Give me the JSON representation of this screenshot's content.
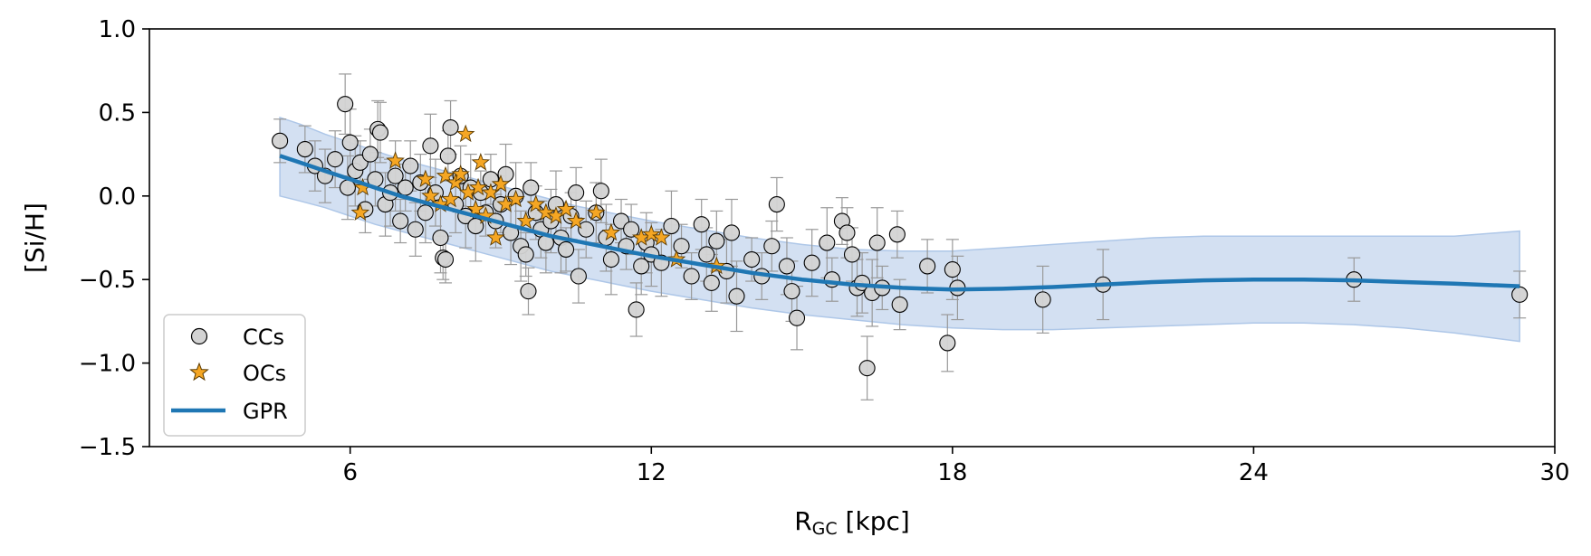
{
  "chart_data": {
    "type": "scatter",
    "title": "",
    "xlabel_main": "R",
    "xlabel_sub": "GC",
    "xlabel_unit": " [kpc]",
    "ylabel": "[Si/H]",
    "xlim": [
      2,
      30
    ],
    "ylim": [
      -1.5,
      1.0
    ],
    "x_ticks": [
      6,
      12,
      18,
      24,
      30
    ],
    "x_tick_labels": [
      "6",
      "12",
      "18",
      "24",
      "30"
    ],
    "y_ticks": [
      1.0,
      0.5,
      0.0,
      -0.5,
      -1.0,
      -1.5
    ],
    "y_tick_labels": [
      "1.0",
      "0.5",
      "0.0",
      "−0.5",
      "−1.0",
      "−1.5"
    ],
    "grid": false,
    "legend": {
      "position": "bottom-left",
      "entries": [
        {
          "label": "CCs",
          "marker": "circle"
        },
        {
          "label": "OCs",
          "marker": "star"
        },
        {
          "label": "GPR",
          "marker": "line"
        }
      ]
    },
    "colors": {
      "cc_fill": "#d3d3d3",
      "cc_edge": "#000000",
      "oc_fill": "#f5a623",
      "oc_edge": "#5a3a00",
      "gpr_line": "#1f77b4",
      "gpr_band": "#aec7e8",
      "errorbar": "#999999"
    },
    "series": [
      {
        "name": "CCs",
        "points": [
          [
            4.6,
            0.33
          ],
          [
            5.1,
            0.28
          ],
          [
            5.3,
            0.18
          ],
          [
            5.5,
            0.12
          ],
          [
            5.7,
            0.22
          ],
          [
            5.9,
            0.55
          ],
          [
            5.95,
            0.05
          ],
          [
            6.0,
            0.32
          ],
          [
            6.1,
            0.15
          ],
          [
            6.2,
            0.2
          ],
          [
            6.3,
            -0.08
          ],
          [
            6.4,
            0.25
          ],
          [
            6.5,
            0.1
          ],
          [
            6.55,
            0.4
          ],
          [
            6.6,
            0.38
          ],
          [
            6.7,
            -0.05
          ],
          [
            6.8,
            0.02
          ],
          [
            6.9,
            0.12
          ],
          [
            7.0,
            -0.15
          ],
          [
            7.1,
            0.05
          ],
          [
            7.2,
            0.18
          ],
          [
            7.3,
            -0.2
          ],
          [
            7.4,
            0.08
          ],
          [
            7.5,
            -0.1
          ],
          [
            7.6,
            0.3
          ],
          [
            7.7,
            0.02
          ],
          [
            7.8,
            -0.25
          ],
          [
            7.85,
            -0.37
          ],
          [
            7.9,
            -0.38
          ],
          [
            7.95,
            0.24
          ],
          [
            8.0,
            0.41
          ],
          [
            8.1,
            -0.05
          ],
          [
            8.2,
            0.12
          ],
          [
            8.3,
            -0.12
          ],
          [
            8.4,
            0.05
          ],
          [
            8.5,
            -0.18
          ],
          [
            8.6,
            0.02
          ],
          [
            8.7,
            -0.1
          ],
          [
            8.8,
            0.1
          ],
          [
            8.9,
            -0.15
          ],
          [
            9.0,
            -0.05
          ],
          [
            9.1,
            0.13
          ],
          [
            9.2,
            -0.22
          ],
          [
            9.3,
            0.0
          ],
          [
            9.4,
            -0.3
          ],
          [
            9.5,
            -0.35
          ],
          [
            9.55,
            -0.57
          ],
          [
            9.6,
            0.05
          ],
          [
            9.7,
            -0.1
          ],
          [
            9.8,
            -0.2
          ],
          [
            9.9,
            -0.28
          ],
          [
            10.0,
            -0.15
          ],
          [
            10.1,
            -0.05
          ],
          [
            10.2,
            -0.25
          ],
          [
            10.3,
            -0.32
          ],
          [
            10.4,
            -0.12
          ],
          [
            10.5,
            0.02
          ],
          [
            10.55,
            -0.48
          ],
          [
            10.7,
            -0.2
          ],
          [
            10.9,
            -0.1
          ],
          [
            11.0,
            0.03
          ],
          [
            11.1,
            -0.25
          ],
          [
            11.2,
            -0.38
          ],
          [
            11.4,
            -0.15
          ],
          [
            11.5,
            -0.3
          ],
          [
            11.6,
            -0.2
          ],
          [
            11.7,
            -0.68
          ],
          [
            11.8,
            -0.42
          ],
          [
            11.9,
            -0.28
          ],
          [
            12.0,
            -0.35
          ],
          [
            12.2,
            -0.4
          ],
          [
            12.4,
            -0.18
          ],
          [
            12.6,
            -0.3
          ],
          [
            12.8,
            -0.48
          ],
          [
            13.0,
            -0.17
          ],
          [
            13.1,
            -0.35
          ],
          [
            13.2,
            -0.52
          ],
          [
            13.3,
            -0.27
          ],
          [
            13.5,
            -0.45
          ],
          [
            13.6,
            -0.22
          ],
          [
            13.7,
            -0.6
          ],
          [
            14.0,
            -0.38
          ],
          [
            14.2,
            -0.48
          ],
          [
            14.4,
            -0.3
          ],
          [
            14.5,
            -0.05
          ],
          [
            14.7,
            -0.42
          ],
          [
            14.8,
            -0.57
          ],
          [
            14.9,
            -0.73
          ],
          [
            15.2,
            -0.4
          ],
          [
            15.5,
            -0.28
          ],
          [
            15.6,
            -0.5
          ],
          [
            15.8,
            -0.15
          ],
          [
            15.9,
            -0.22
          ],
          [
            16.0,
            -0.35
          ],
          [
            16.1,
            -0.55
          ],
          [
            16.2,
            -0.52
          ],
          [
            16.3,
            -1.03
          ],
          [
            16.4,
            -0.58
          ],
          [
            16.5,
            -0.28
          ],
          [
            16.6,
            -0.55
          ],
          [
            16.9,
            -0.23
          ],
          [
            16.95,
            -0.65
          ],
          [
            17.5,
            -0.42
          ],
          [
            17.9,
            -0.88
          ],
          [
            18.0,
            -0.44
          ],
          [
            18.1,
            -0.55
          ],
          [
            19.8,
            -0.62
          ],
          [
            21.0,
            -0.53
          ],
          [
            26.0,
            -0.5
          ],
          [
            29.3,
            -0.59
          ]
        ]
      },
      {
        "name": "OCs",
        "points": [
          [
            6.2,
            -0.1
          ],
          [
            6.25,
            0.05
          ],
          [
            6.9,
            0.21
          ],
          [
            7.5,
            0.1
          ],
          [
            7.6,
            0.0
          ],
          [
            7.8,
            -0.05
          ],
          [
            7.9,
            0.12
          ],
          [
            8.0,
            -0.02
          ],
          [
            8.1,
            0.08
          ],
          [
            8.2,
            0.13
          ],
          [
            8.3,
            0.37
          ],
          [
            8.35,
            0.02
          ],
          [
            8.5,
            -0.08
          ],
          [
            8.55,
            0.05
          ],
          [
            8.6,
            0.2
          ],
          [
            8.7,
            -0.12
          ],
          [
            8.8,
            0.02
          ],
          [
            8.9,
            -0.25
          ],
          [
            9.0,
            0.07
          ],
          [
            9.1,
            -0.05
          ],
          [
            9.3,
            -0.02
          ],
          [
            9.5,
            -0.15
          ],
          [
            9.7,
            -0.05
          ],
          [
            9.9,
            -0.1
          ],
          [
            10.1,
            -0.12
          ],
          [
            10.3,
            -0.08
          ],
          [
            10.5,
            -0.15
          ],
          [
            10.9,
            -0.1
          ],
          [
            11.2,
            -0.22
          ],
          [
            11.8,
            -0.25
          ],
          [
            12.0,
            -0.23
          ],
          [
            12.2,
            -0.25
          ],
          [
            12.5,
            -0.38
          ],
          [
            13.3,
            -0.42
          ]
        ]
      },
      {
        "name": "GPR",
        "x": [
          4.6,
          5.0,
          5.5,
          6.0,
          6.5,
          7.0,
          7.5,
          8.0,
          8.5,
          9.0,
          9.5,
          10.0,
          10.5,
          11.0,
          11.5,
          12.0,
          13.0,
          14.0,
          15.0,
          16.0,
          17.0,
          18.0,
          19.0,
          20.0,
          21.0,
          22.0,
          23.0,
          24.0,
          25.0,
          26.0,
          27.0,
          28.0,
          29.3
        ],
        "y": [
          0.24,
          0.2,
          0.15,
          0.1,
          0.05,
          0.0,
          -0.04,
          -0.08,
          -0.12,
          -0.16,
          -0.2,
          -0.24,
          -0.27,
          -0.3,
          -0.33,
          -0.36,
          -0.41,
          -0.46,
          -0.5,
          -0.53,
          -0.55,
          -0.56,
          -0.555,
          -0.545,
          -0.53,
          -0.515,
          -0.505,
          -0.5,
          -0.5,
          -0.505,
          -0.515,
          -0.525,
          -0.54
        ],
        "lower": [
          0.0,
          -0.03,
          -0.07,
          -0.12,
          -0.17,
          -0.21,
          -0.25,
          -0.29,
          -0.33,
          -0.37,
          -0.41,
          -0.45,
          -0.48,
          -0.51,
          -0.54,
          -0.57,
          -0.62,
          -0.67,
          -0.71,
          -0.74,
          -0.77,
          -0.79,
          -0.8,
          -0.8,
          -0.79,
          -0.78,
          -0.77,
          -0.76,
          -0.76,
          -0.77,
          -0.79,
          -0.82,
          -0.87
        ],
        "upper": [
          0.47,
          0.43,
          0.37,
          0.32,
          0.27,
          0.22,
          0.18,
          0.14,
          0.1,
          0.06,
          0.02,
          -0.02,
          -0.06,
          -0.09,
          -0.12,
          -0.15,
          -0.2,
          -0.25,
          -0.29,
          -0.32,
          -0.33,
          -0.33,
          -0.31,
          -0.29,
          -0.27,
          -0.25,
          -0.24,
          -0.24,
          -0.24,
          -0.24,
          -0.24,
          -0.24,
          -0.21
        ]
      }
    ]
  }
}
